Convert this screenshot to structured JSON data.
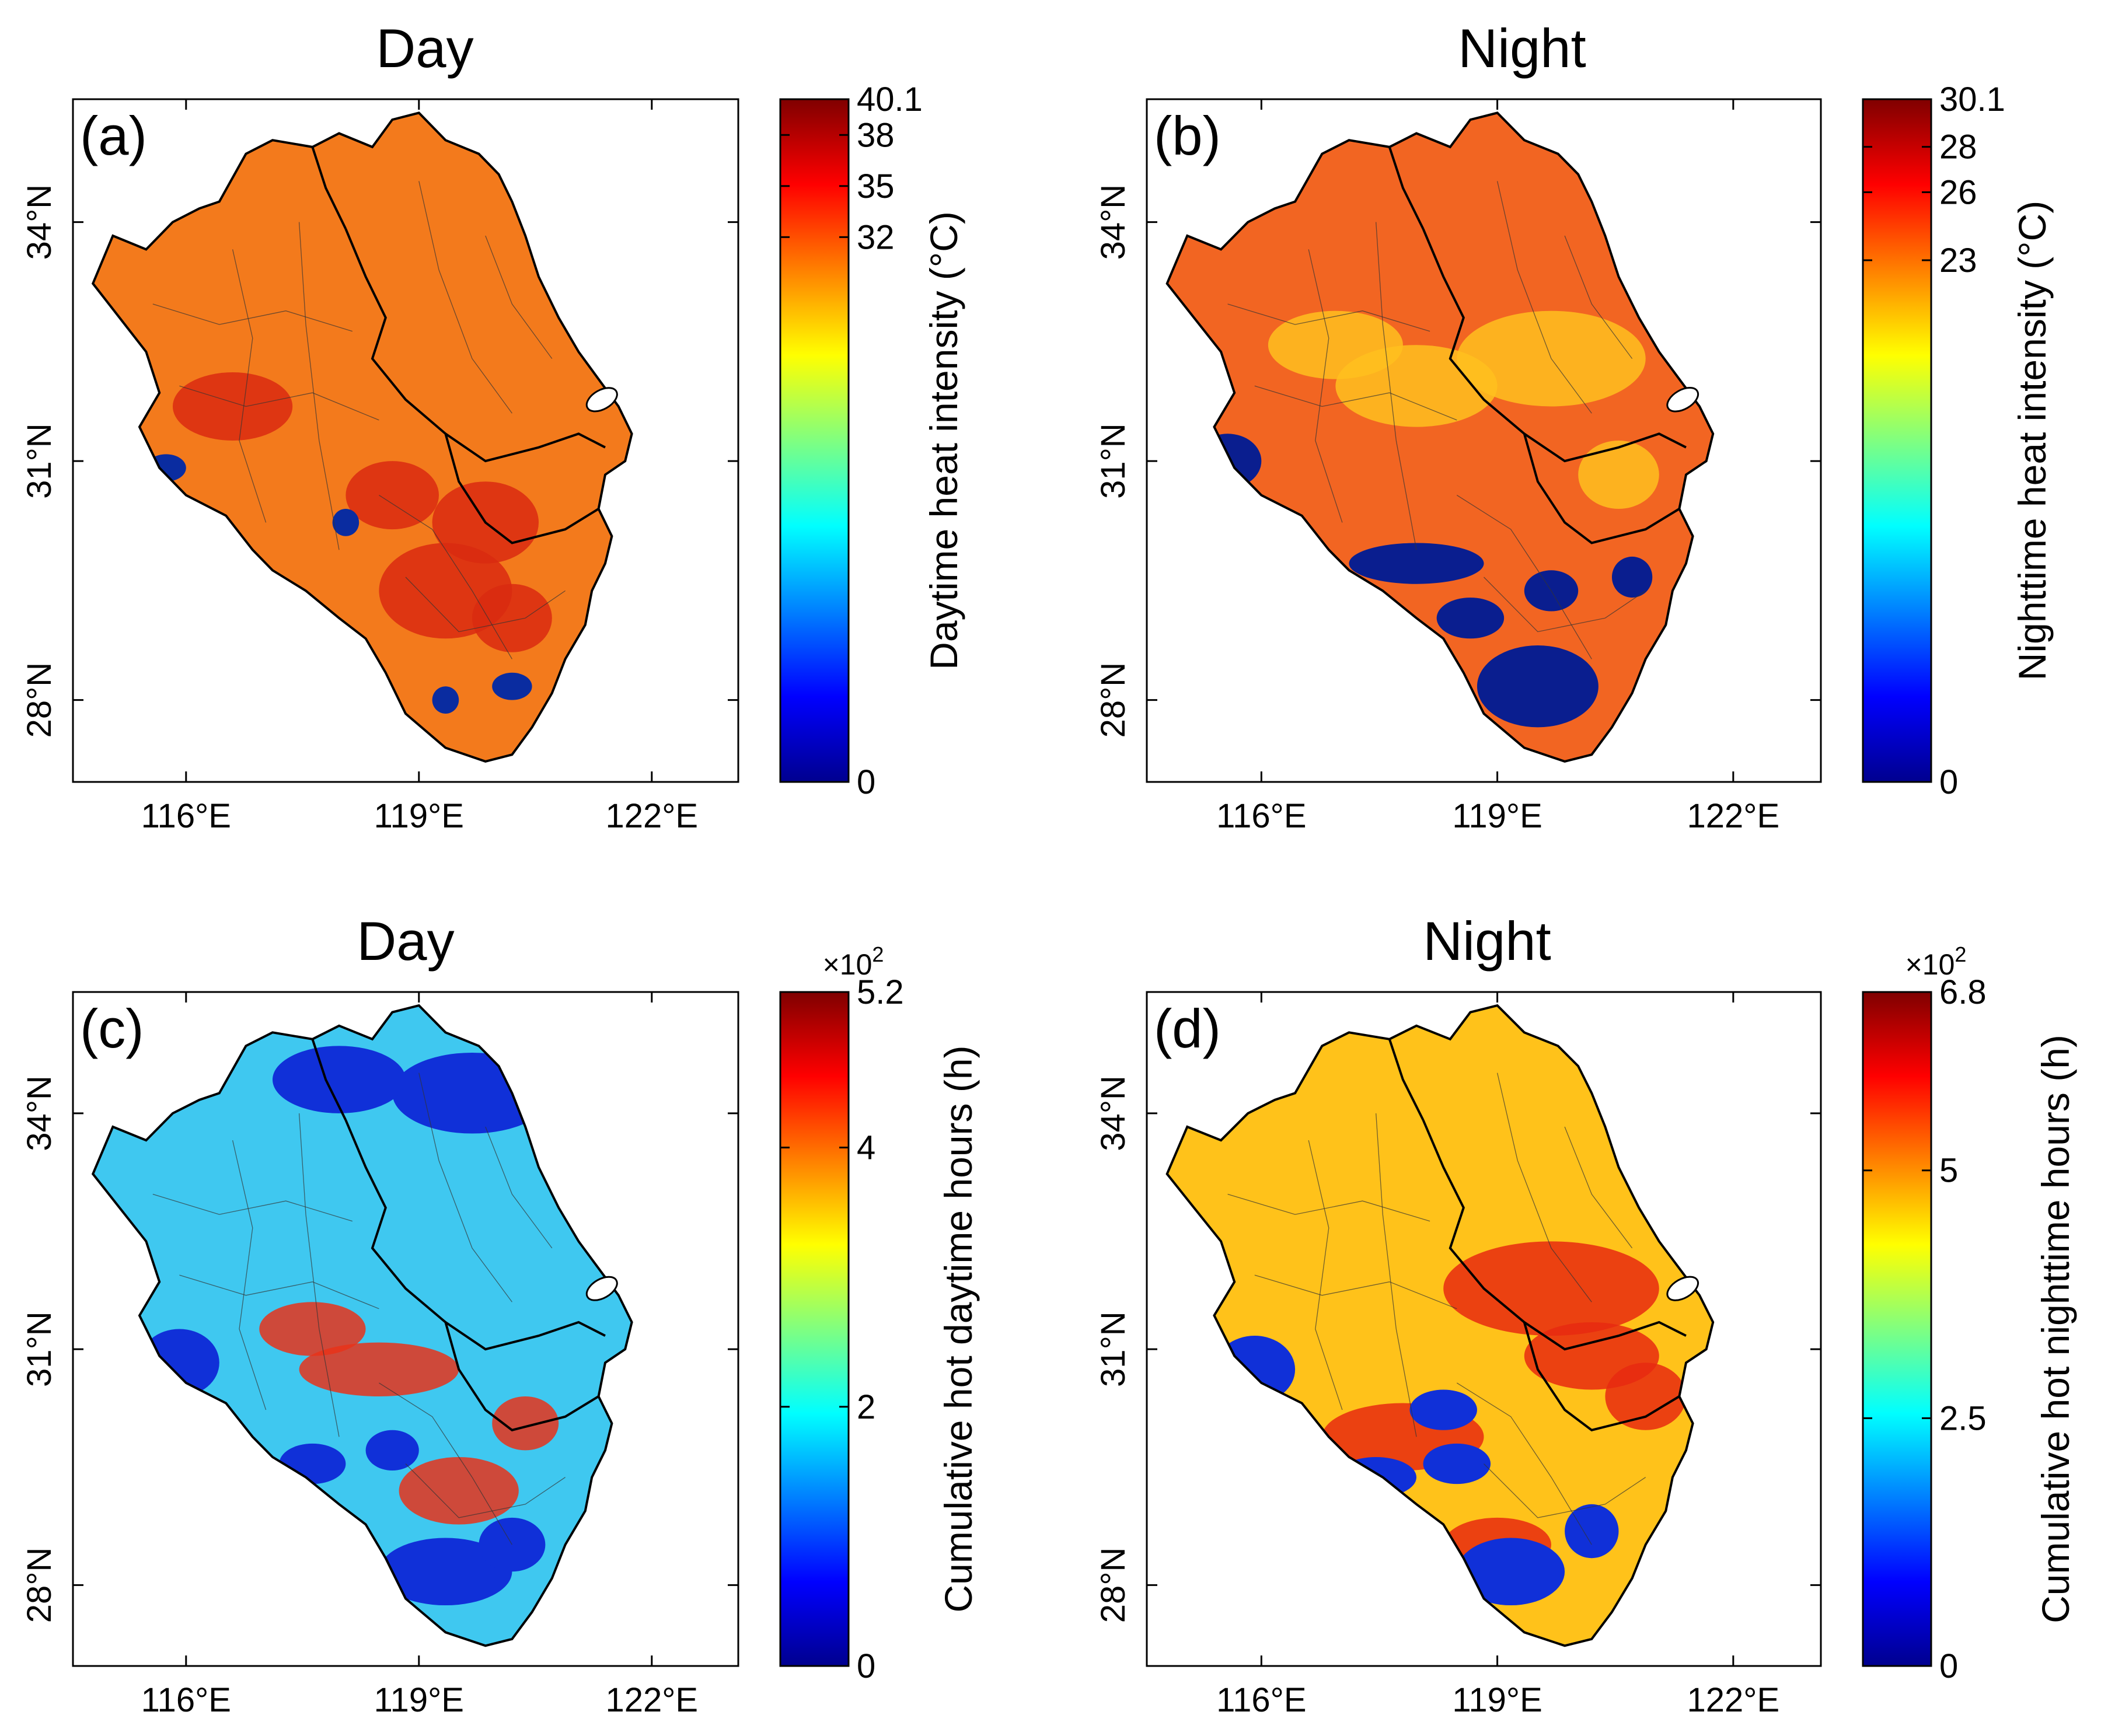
{
  "figure": {
    "panels": [
      {
        "id": "a",
        "title": "Day",
        "label": "(a)",
        "x_ticks": [
          "116°E",
          "119°E",
          "122°E"
        ],
        "y_ticks": [
          "34°N",
          "31°N",
          "28°N"
        ],
        "colorbar": {
          "label": "Daytime heat intensity (°C)",
          "ticks": [
            "40.1",
            "38",
            "35",
            "32",
            "0"
          ],
          "tick_values": [
            40.1,
            38,
            35,
            32,
            0
          ],
          "multiplier": "",
          "multiplier_exp": ""
        },
        "palette": [
          "#00008f",
          "#0000ff",
          "#0080ff",
          "#00ffff",
          "#80ff80",
          "#ffff00",
          "#ff8000",
          "#ff0000",
          "#800000"
        ],
        "land_fill": "#f37a1c",
        "hotspot_color": "#d92a10",
        "patch_color": "#0a2ca0"
      },
      {
        "id": "b",
        "title": "Night",
        "label": "(b)",
        "x_ticks": [
          "116°E",
          "119°E",
          "122°E"
        ],
        "y_ticks": [
          "34°N",
          "31°N",
          "28°N"
        ],
        "colorbar": {
          "label": "Nighttime heat intensity (°C)",
          "ticks": [
            "30.1",
            "28",
            "26",
            "23",
            "0"
          ],
          "tick_values": [
            30.1,
            28,
            26,
            23,
            0
          ],
          "multiplier": "",
          "multiplier_exp": ""
        },
        "palette": [
          "#00008f",
          "#0000ff",
          "#0080ff",
          "#00ffff",
          "#80ff80",
          "#ffff00",
          "#ff8000",
          "#ff0000",
          "#800000"
        ],
        "land_fill": "#f26522",
        "hotspot_color": "#ffbf1f",
        "patch_color": "#0a1e8f"
      },
      {
        "id": "c",
        "title": "Day",
        "label": "(c)",
        "x_ticks": [
          "116°E",
          "119°E",
          "122°E"
        ],
        "y_ticks": [
          "34°N",
          "31°N",
          "28°N"
        ],
        "colorbar": {
          "label": "Cumulative hot daytime hours (h)",
          "ticks": [
            "5.2",
            "4",
            "2",
            "0"
          ],
          "tick_values": [
            5.2,
            4,
            2,
            0
          ],
          "multiplier": "×10",
          "multiplier_exp": "2"
        },
        "palette": [
          "#00008f",
          "#0000ff",
          "#0080ff",
          "#00ffff",
          "#80ff80",
          "#ffff00",
          "#ff8000",
          "#ff0000",
          "#800000"
        ],
        "land_fill": "#3fc8f0",
        "hotspot_color": "#e8321a",
        "patch_color": "#1030d8"
      },
      {
        "id": "d",
        "title": "Night",
        "label": "(d)",
        "x_ticks": [
          "116°E",
          "119°E",
          "122°E"
        ],
        "y_ticks": [
          "34°N",
          "31°N",
          "28°N"
        ],
        "colorbar": {
          "label": "Cumulative hot nighttime hours (h)",
          "ticks": [
            "6.8",
            "5",
            "2.5",
            "0"
          ],
          "tick_values": [
            6.8,
            5,
            2.5,
            0
          ],
          "multiplier": "×10",
          "multiplier_exp": "2"
        },
        "palette": [
          "#00008f",
          "#0000ff",
          "#0080ff",
          "#00ffff",
          "#80ff80",
          "#ffff00",
          "#ff8000",
          "#ff0000",
          "#800000"
        ],
        "land_fill": "#ffc21a",
        "hotspot_color": "#e82a10",
        "patch_color": "#1030d8"
      }
    ]
  }
}
